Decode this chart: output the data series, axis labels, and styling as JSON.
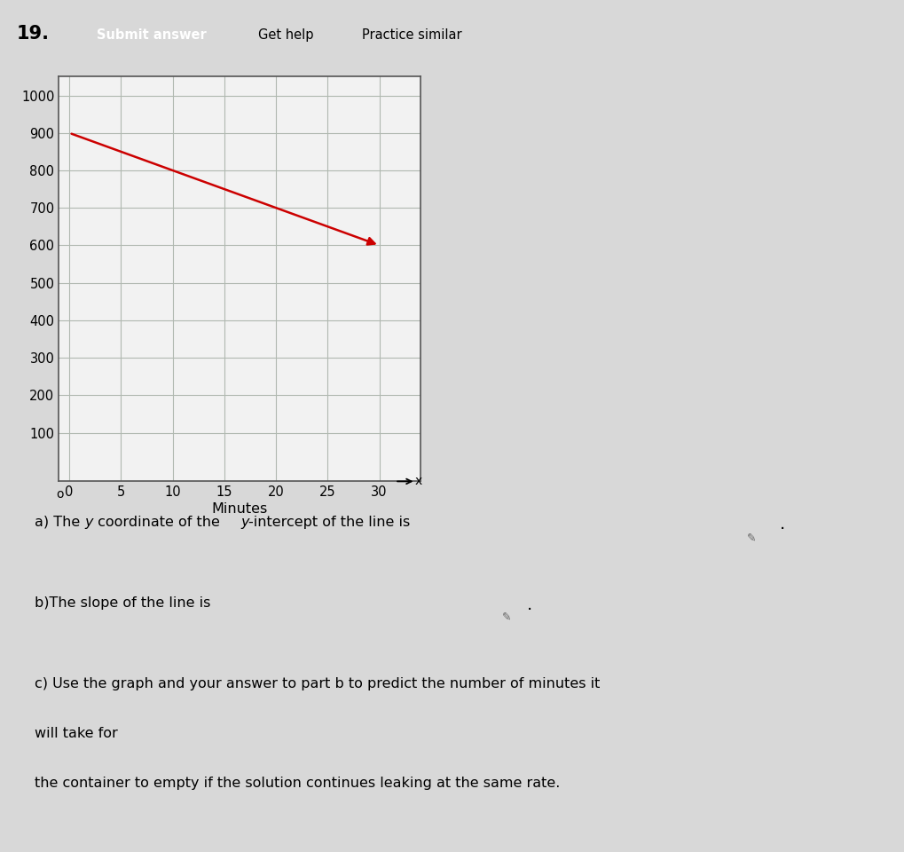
{
  "title_number": "19.",
  "btn_submit": "Submit answer",
  "btn_help": "Get help",
  "btn_practice": "Practice similar",
  "line_x": [
    0,
    30
  ],
  "line_y": [
    900,
    600
  ],
  "marker_x": 30,
  "marker_y": 600,
  "line_color": "#cc0000",
  "xlim": [
    -1,
    34
  ],
  "ylim": [
    -30,
    1050
  ],
  "xticks": [
    0,
    5,
    10,
    15,
    20,
    25,
    30
  ],
  "yticks": [
    100,
    200,
    300,
    400,
    500,
    600,
    700,
    800,
    900,
    1000
  ],
  "xlabel": "Minutes",
  "grid_color": "#b0b8b0",
  "plot_bg": "#f2f2f2",
  "page_bg": "#d8d8d8",
  "submit_bg": "#1a4a6e",
  "help_bg": "#e0e0e0",
  "practice_bg": "#e0e0e0",
  "text_color": "#1a1a1a",
  "box_bg": "#d0d0d0",
  "text_a1": "a) The ",
  "text_a_y1": "y",
  "text_a2": " coordinate of the ",
  "text_a_y2": "y",
  "text_a3": "-intercept of the line is",
  "text_b": "b)The slope of the line is",
  "text_c1": "c) Use the graph and your answer to part b to predict the number of minutes it",
  "text_c2": "will take for",
  "text_c3": "the container to empty if the solution continues leaking at the same rate."
}
